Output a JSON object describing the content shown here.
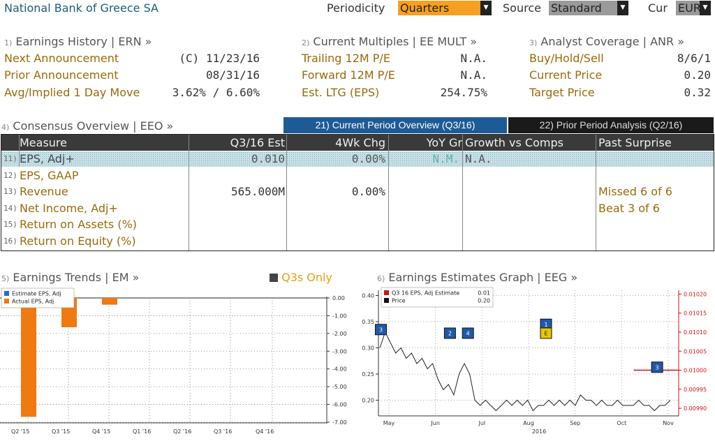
{
  "header": {
    "company": "National Bank of Greece SA",
    "periodicity_label": "Periodicity",
    "periodicity_value": "Quarters",
    "source_label": "Source",
    "source_value": "Standard",
    "cur_label": "Cur",
    "cur_value": "EUR"
  },
  "earnings_history": {
    "num": "1)",
    "title": "Earnings History | ERN »",
    "rows": [
      {
        "label": "Next Announcement",
        "value": "(C)  11/23/16"
      },
      {
        "label": "Prior Announcement",
        "value": "08/31/16"
      },
      {
        "label": "Avg/Implied 1 Day Move",
        "value": "3.62% / 6.60%"
      }
    ]
  },
  "current_multiples": {
    "num": "2)",
    "title": "Current Multiples | EE MULT »",
    "rows": [
      {
        "label": "Trailing 12M P/E",
        "value": "N.A."
      },
      {
        "label": "Forward 12M P/E",
        "value": "N.A."
      },
      {
        "label": "Est. LTG (EPS)",
        "value": "254.75%"
      }
    ]
  },
  "analyst_coverage": {
    "num": "3)",
    "title": "Analyst Coverage | ANR »",
    "rows": [
      {
        "label": "Buy/Hold/Sell",
        "value": "8/6/1"
      },
      {
        "label": "Current Price",
        "value": "0.20"
      },
      {
        "label": "Target Price",
        "value": "0.32"
      }
    ]
  },
  "consensus": {
    "num": "4)",
    "title": "Consensus Overview | EEO »",
    "tab_current": "21) Current Period Overview (Q3/16)",
    "tab_prior": "22) Prior Period Analysis (Q2/16)",
    "columns": [
      "Measure",
      "Q3/16 Est",
      "4Wk Chg",
      "YoY Gr",
      "Growth vs Comps",
      "Past Surprise"
    ],
    "rows": [
      {
        "num": "11)",
        "measure": "EPS, Adj+",
        "est": "0.010",
        "chg": "0.00%",
        "yoy": "N.M.",
        "comps": "N.A.",
        "surprise": ""
      },
      {
        "num": "12)",
        "measure": "EPS, GAAP",
        "est": "",
        "chg": "",
        "yoy": "",
        "comps": "",
        "surprise": ""
      },
      {
        "num": "13)",
        "measure": "Revenue",
        "est": "565.000M",
        "chg": "0.00%",
        "yoy": "",
        "comps": "",
        "surprise": "Missed 6 of 6"
      },
      {
        "num": "14)",
        "measure": "Net Income, Adj+",
        "est": "",
        "chg": "",
        "yoy": "",
        "comps": "",
        "surprise": "Beat 3 of 6"
      },
      {
        "num": "15)",
        "measure": "Return on Assets (%)",
        "est": "",
        "chg": "",
        "yoy": "",
        "comps": "",
        "surprise": ""
      },
      {
        "num": "16)",
        "measure": "Return on Equity (%)",
        "est": "",
        "chg": "",
        "yoy": "",
        "comps": "",
        "surprise": ""
      }
    ]
  },
  "earnings_trends": {
    "num": "5)",
    "title": "Earnings Trends | EM »",
    "toggle_label": "Q3s Only"
  },
  "earnings_graph": {
    "num": "6)",
    "title": "Earnings Estimates Graph | EEG »"
  },
  "chart_data": [
    {
      "type": "bar",
      "title": "Earnings Trends",
      "categories": [
        "Q2 '15",
        "Q3 '15",
        "Q4 '15",
        "Q1 '16",
        "Q2 '16",
        "Q3 '16",
        "Q4 '16"
      ],
      "series": [
        {
          "name": "Estimate EPS, Adj",
          "color": "#1e6fd0",
          "values": [
            null,
            null,
            null,
            null,
            null,
            null,
            null
          ]
        },
        {
          "name": "Actual EPS, Adj",
          "color": "#f07a10",
          "values": [
            -6.7,
            -1.65,
            -0.38,
            null,
            null,
            null,
            null
          ]
        }
      ],
      "yticks": [
        "0.00",
        "-1.00",
        "-2.00",
        "-3.00",
        "-4.00",
        "-5.00",
        "-6.00",
        "-7.00"
      ],
      "ylim": [
        -7,
        0
      ],
      "legend": "top-left",
      "grid": true
    },
    {
      "type": "line",
      "title": "Earnings Estimates Graph",
      "xticks": [
        "May",
        "Jun",
        "Jul",
        "Aug",
        "Sep",
        "Oct",
        "Nov"
      ],
      "xlabel_year": "2016",
      "left_ticks": [
        "0.40",
        "0.35",
        "0.30",
        "0.25",
        "0.20"
      ],
      "left_ylim": [
        0.17,
        0.41
      ],
      "right_ticks": [
        "0.01020",
        "0.01015",
        "0.01010",
        "0.01005",
        "0.01000",
        "0.00995",
        "0.00990"
      ],
      "right_ylim": [
        0.00988,
        0.01021
      ],
      "legend": [
        {
          "name": "Q3 16 EPS, Adj Estimate",
          "value": "0.01",
          "color": "#d01010"
        },
        {
          "name": "Price",
          "value": "0.20",
          "color": "#111111"
        }
      ],
      "price_series": [
        0.3,
        0.33,
        0.31,
        0.29,
        0.3,
        0.28,
        0.29,
        0.27,
        0.28,
        0.26,
        0.27,
        0.24,
        0.22,
        0.23,
        0.21,
        0.25,
        0.27,
        0.25,
        0.2,
        0.19,
        0.2,
        0.19,
        0.18,
        0.19,
        0.2,
        0.19,
        0.2,
        0.19,
        0.2,
        0.18,
        0.19,
        0.19,
        0.2,
        0.19,
        0.2,
        0.19,
        0.2,
        0.19,
        0.21,
        0.2,
        0.2,
        0.19,
        0.2,
        0.19,
        0.19,
        0.2,
        0.19,
        0.19,
        0.19,
        0.2,
        0.19,
        0.19,
        0.18,
        0.19,
        0.19,
        0.2
      ],
      "estimate_segment": {
        "start_fraction": 0.85,
        "value": 0.01
      },
      "markers": [
        {
          "label": "3",
          "x_fraction": 0.0,
          "y": 0.335,
          "color": "#1e5aa8"
        },
        {
          "label": "2",
          "x_fraction": 0.23,
          "y": 0.328,
          "color": "#1e5aa8"
        },
        {
          "label": "4",
          "x_fraction": 0.29,
          "y": 0.328,
          "color": "#1e5aa8"
        },
        {
          "label": "1",
          "x_fraction": 0.55,
          "y": 0.345,
          "color": "#1e5aa8"
        },
        {
          "label": "E",
          "x_fraction": 0.55,
          "y": 0.328,
          "color": "#e8c800"
        },
        {
          "label": "3",
          "x_fraction": 0.92,
          "y": 0.263,
          "color": "#1e5aa8"
        }
      ]
    }
  ]
}
